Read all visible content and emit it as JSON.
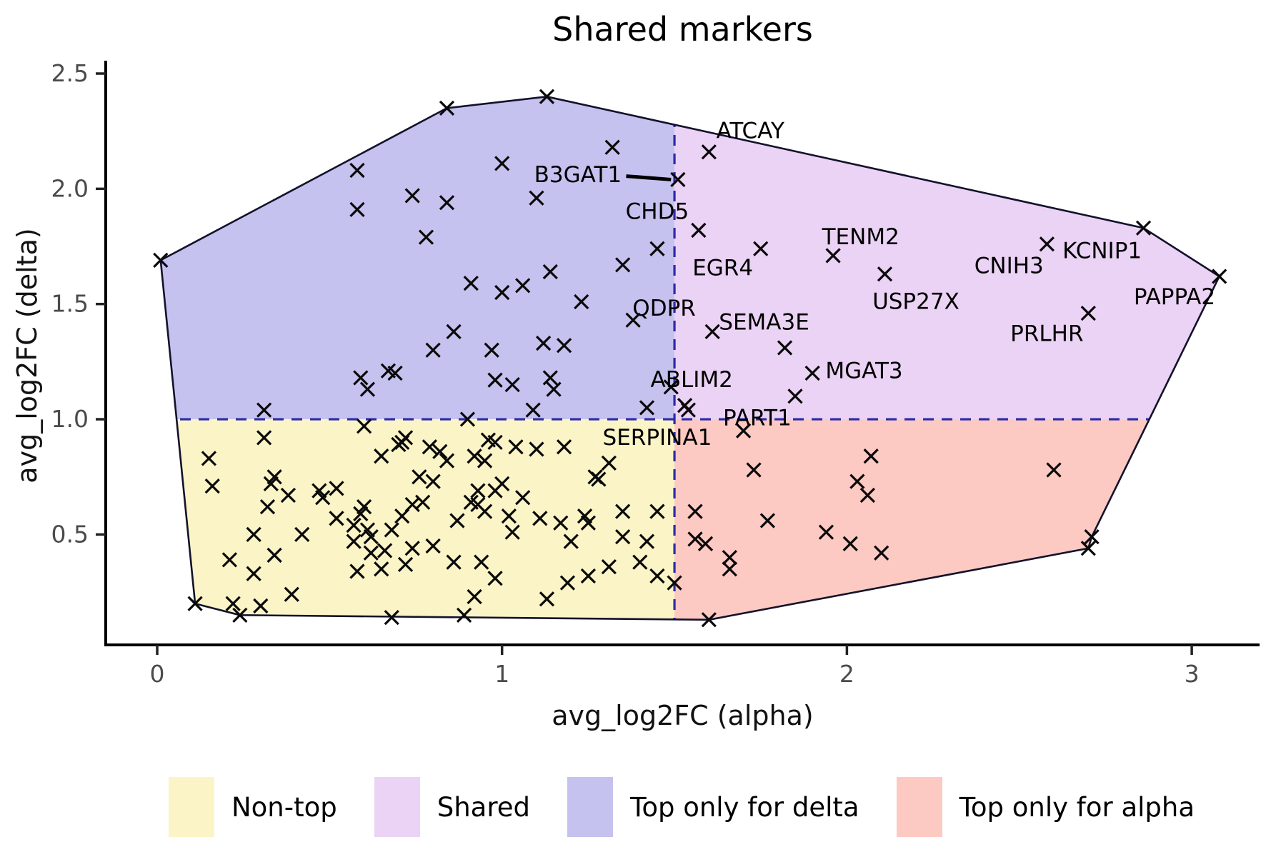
{
  "figure": {
    "title": "Shared markers"
  },
  "colors": {
    "background": "#ffffff",
    "non_top_region": "#FBF4C6",
    "shared_region": "#EBD3F5",
    "top_delta_region": "#C5C2EF",
    "top_alpha_region": "#FDC9C3",
    "dashed_line": "#2B2BA8",
    "hull_outline": "#12122B",
    "marker": "#0a0a0a",
    "tick_text": "#4B4B4B",
    "axis_line": "#000000"
  },
  "legend": {
    "items": [
      {
        "label": "Non-top",
        "color": "#FBF4C6"
      },
      {
        "label": "Shared",
        "color": "#EBD3F5"
      },
      {
        "label": "Top only for delta",
        "color": "#C5C2EF"
      },
      {
        "label": "Top only for alpha",
        "color": "#FDC9C3"
      }
    ]
  },
  "chart_data": {
    "type": "scatter",
    "title": "Shared markers",
    "xlabel": "avg_log2FC (alpha)",
    "ylabel": "avg_log2FC (delta)",
    "x_ticks": [
      "0",
      "1",
      "2",
      "3"
    ],
    "x_tick_values": [
      0,
      1,
      2,
      3
    ],
    "y_ticks": [
      "0.5",
      "1.0",
      "1.5",
      "2.0",
      "2.5"
    ],
    "y_tick_values": [
      0.5,
      1.0,
      1.5,
      2.0,
      2.5
    ],
    "xlim": [
      -0.15,
      3.2
    ],
    "ylim": [
      0.02,
      2.56
    ],
    "grid": false,
    "legend_position": "bottom",
    "marker_symbol": "x",
    "thresholds": {
      "x": 1.5,
      "y": 1.0
    },
    "regions": [
      {
        "name": "Non-top",
        "color": "#FBF4C6",
        "quadrant": "x<1.5 & y<1.0"
      },
      {
        "name": "Shared",
        "color": "#EBD3F5",
        "quadrant": "x>=1.5 & y>=1.0"
      },
      {
        "name": "Top only for delta",
        "color": "#C5C2EF",
        "quadrant": "x<1.5 & y>=1.0"
      },
      {
        "name": "Top only for alpha",
        "color": "#FDC9C3",
        "quadrant": "x>=1.5 & y<1.0"
      }
    ],
    "hull": [
      [
        0.01,
        1.69
      ],
      [
        0.84,
        2.35
      ],
      [
        1.13,
        2.4
      ],
      [
        2.86,
        1.83
      ],
      [
        3.08,
        1.62
      ],
      [
        2.71,
        0.49
      ],
      [
        2.7,
        0.44
      ],
      [
        1.6,
        0.13
      ],
      [
        0.24,
        0.15
      ],
      [
        0.11,
        0.2
      ]
    ],
    "labeled_points": [
      {
        "gene": "ATCAY",
        "x": 1.6,
        "y": 2.16,
        "lx": 1.72,
        "ly": 2.25
      },
      {
        "gene": "B3GAT1",
        "x": 1.51,
        "y": 2.04,
        "lx": 1.22,
        "ly": 2.06,
        "segment": [
          [
            1.36,
            2.055
          ],
          [
            1.49,
            2.04
          ]
        ]
      },
      {
        "gene": "CHD5",
        "x": 1.57,
        "y": 1.82,
        "lx": 1.45,
        "ly": 1.9
      },
      {
        "gene": "EGR4",
        "x": 1.75,
        "y": 1.74,
        "lx": 1.64,
        "ly": 1.655
      },
      {
        "gene": "TENM2",
        "x": 1.96,
        "y": 1.71,
        "lx": 2.04,
        "ly": 1.79
      },
      {
        "gene": "USP27X",
        "x": 2.11,
        "y": 1.63,
        "lx": 2.2,
        "ly": 1.51
      },
      {
        "gene": "CNIH3",
        "x": 2.58,
        "y": 1.76,
        "lx": 2.47,
        "ly": 1.665
      },
      {
        "gene": "KCNIP1",
        "x": 2.86,
        "y": 1.83,
        "lx": 2.74,
        "ly": 1.73
      },
      {
        "gene": "PAPPA2",
        "x": 3.08,
        "y": 1.62,
        "lx": 2.95,
        "ly": 1.53
      },
      {
        "gene": "PRLHR",
        "x": 2.7,
        "y": 1.46,
        "lx": 2.58,
        "ly": 1.37
      },
      {
        "gene": "SEMA3E",
        "x": 1.61,
        "y": 1.38,
        "lx": 1.76,
        "ly": 1.42
      },
      {
        "gene": "QDPR",
        "x": 1.38,
        "y": 1.43,
        "lx": 1.47,
        "ly": 1.48
      },
      {
        "gene": "ABLIM2",
        "x": 1.49,
        "y": 1.14,
        "lx": 1.55,
        "ly": 1.17
      },
      {
        "gene": "PART1",
        "x": 1.7,
        "y": 0.95,
        "lx": 1.74,
        "ly": 1.005
      },
      {
        "gene": "SERPINA1",
        "x": 1.54,
        "y": 1.04,
        "lx": 1.45,
        "ly": 0.92
      },
      {
        "gene": "MGAT3",
        "x": 1.9,
        "y": 1.2,
        "lx": 2.05,
        "ly": 1.21
      }
    ],
    "series": [
      {
        "name": "Top only for delta",
        "points": [
          [
            0.01,
            1.69
          ],
          [
            0.84,
            2.35
          ],
          [
            1.13,
            2.4
          ],
          [
            0.58,
            2.08
          ],
          [
            0.74,
            1.97
          ],
          [
            0.84,
            1.94
          ],
          [
            0.58,
            1.91
          ],
          [
            0.78,
            1.79
          ],
          [
            1.32,
            2.18
          ],
          [
            1.0,
            2.11
          ],
          [
            1.1,
            1.96
          ],
          [
            1.45,
            1.74
          ],
          [
            1.35,
            1.67
          ],
          [
            1.14,
            1.64
          ],
          [
            0.91,
            1.59
          ],
          [
            1.06,
            1.58
          ],
          [
            1.0,
            1.55
          ],
          [
            1.23,
            1.51
          ],
          [
            0.86,
            1.38
          ],
          [
            0.8,
            1.3
          ],
          [
            1.12,
            1.33
          ],
          [
            1.18,
            1.32
          ],
          [
            0.97,
            1.3
          ],
          [
            0.59,
            1.18
          ],
          [
            0.67,
            1.21
          ],
          [
            0.69,
            1.2
          ],
          [
            0.61,
            1.13
          ],
          [
            0.31,
            1.04
          ],
          [
            0.98,
            1.17
          ],
          [
            1.03,
            1.15
          ],
          [
            1.14,
            1.18
          ],
          [
            1.15,
            1.13
          ],
          [
            1.09,
            1.04
          ],
          [
            1.42,
            1.05
          ],
          [
            0.9,
            1.0
          ]
        ]
      },
      {
        "name": "Shared",
        "points": [
          [
            1.82,
            1.31
          ],
          [
            1.85,
            1.1
          ],
          [
            1.53,
            1.06
          ]
        ]
      },
      {
        "name": "Top only for alpha",
        "points": [
          [
            1.73,
            0.78
          ],
          [
            1.56,
            0.6
          ],
          [
            1.77,
            0.56
          ],
          [
            1.56,
            0.48
          ],
          [
            1.59,
            0.46
          ],
          [
            1.66,
            0.4
          ],
          [
            1.66,
            0.35
          ],
          [
            2.07,
            0.84
          ],
          [
            2.03,
            0.73
          ],
          [
            2.06,
            0.67
          ],
          [
            1.94,
            0.51
          ],
          [
            2.01,
            0.46
          ],
          [
            2.1,
            0.42
          ],
          [
            2.6,
            0.78
          ],
          [
            2.71,
            0.49
          ],
          [
            2.7,
            0.44
          ],
          [
            1.6,
            0.13
          ],
          [
            1.5,
            0.29
          ]
        ]
      },
      {
        "name": "Non-top",
        "points": [
          [
            0.6,
            0.97
          ],
          [
            0.31,
            0.92
          ],
          [
            0.71,
            0.9
          ],
          [
            0.7,
            0.89
          ],
          [
            0.72,
            0.92
          ],
          [
            0.65,
            0.84
          ],
          [
            0.79,
            0.88
          ],
          [
            0.82,
            0.86
          ],
          [
            0.84,
            0.82
          ],
          [
            0.15,
            0.83
          ],
          [
            0.16,
            0.71
          ],
          [
            0.34,
            0.75
          ],
          [
            0.33,
            0.72
          ],
          [
            0.38,
            0.67
          ],
          [
            0.32,
            0.62
          ],
          [
            0.47,
            0.69
          ],
          [
            0.48,
            0.66
          ],
          [
            0.52,
            0.7
          ],
          [
            0.76,
            0.75
          ],
          [
            0.8,
            0.73
          ],
          [
            0.74,
            0.63
          ],
          [
            0.77,
            0.64
          ],
          [
            0.6,
            0.62
          ],
          [
            0.59,
            0.59
          ],
          [
            0.61,
            0.52
          ],
          [
            0.62,
            0.49
          ],
          [
            0.57,
            0.54
          ],
          [
            0.57,
            0.47
          ],
          [
            0.52,
            0.57
          ],
          [
            0.68,
            0.52
          ],
          [
            0.71,
            0.58
          ],
          [
            0.74,
            0.44
          ],
          [
            0.72,
            0.37
          ],
          [
            0.66,
            0.43
          ],
          [
            0.62,
            0.42
          ],
          [
            0.58,
            0.34
          ],
          [
            0.65,
            0.35
          ],
          [
            0.8,
            0.45
          ],
          [
            0.86,
            0.38
          ],
          [
            0.28,
            0.5
          ],
          [
            0.42,
            0.5
          ],
          [
            0.21,
            0.39
          ],
          [
            0.34,
            0.41
          ],
          [
            0.28,
            0.33
          ],
          [
            0.39,
            0.24
          ],
          [
            0.11,
            0.2
          ],
          [
            0.22,
            0.2
          ],
          [
            0.24,
            0.15
          ],
          [
            0.3,
            0.19
          ],
          [
            0.68,
            0.14
          ],
          [
            0.96,
            0.91
          ],
          [
            0.98,
            0.9
          ],
          [
            1.04,
            0.88
          ],
          [
            1.1,
            0.87
          ],
          [
            1.18,
            0.88
          ],
          [
            0.92,
            0.84
          ],
          [
            0.95,
            0.82
          ],
          [
            1.31,
            0.81
          ],
          [
            1.27,
            0.75
          ],
          [
            1.28,
            0.74
          ],
          [
            1.0,
            0.72
          ],
          [
            0.93,
            0.69
          ],
          [
            0.91,
            0.64
          ],
          [
            0.93,
            0.63
          ],
          [
            0.98,
            0.69
          ],
          [
            1.06,
            0.66
          ],
          [
            0.95,
            0.6
          ],
          [
            1.02,
            0.58
          ],
          [
            1.03,
            0.51
          ],
          [
            1.11,
            0.57
          ],
          [
            1.17,
            0.55
          ],
          [
            1.24,
            0.58
          ],
          [
            1.25,
            0.55
          ],
          [
            1.35,
            0.6
          ],
          [
            1.45,
            0.6
          ],
          [
            1.2,
            0.47
          ],
          [
            1.35,
            0.49
          ],
          [
            1.42,
            0.47
          ],
          [
            1.4,
            0.38
          ],
          [
            1.31,
            0.36
          ],
          [
            1.25,
            0.32
          ],
          [
            1.19,
            0.29
          ],
          [
            0.94,
            0.38
          ],
          [
            0.98,
            0.31
          ],
          [
            0.92,
            0.23
          ],
          [
            1.13,
            0.22
          ],
          [
            1.45,
            0.32
          ],
          [
            0.89,
            0.15
          ],
          [
            0.87,
            0.56
          ]
        ]
      }
    ]
  }
}
